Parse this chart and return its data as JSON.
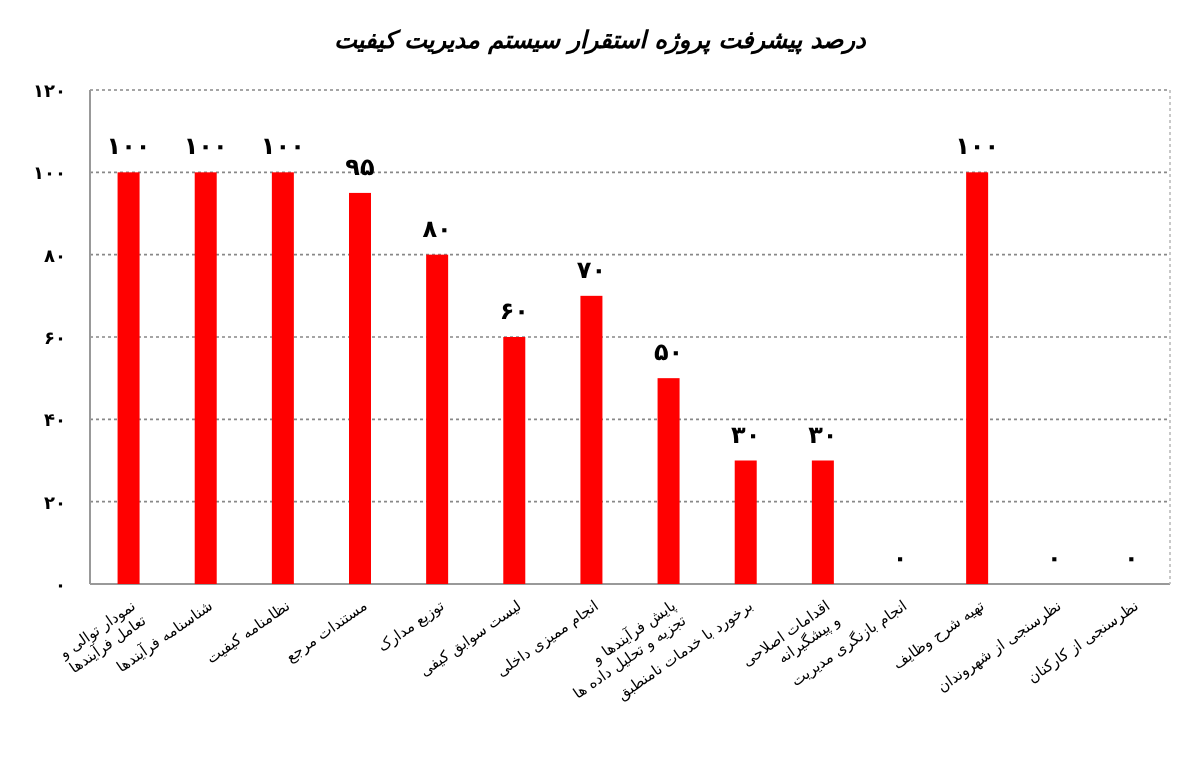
{
  "chart_data": {
    "type": "bar",
    "title": "درصد پیشرفت پروژه استقرار سیستم مدیریت کیفیت",
    "categories": [
      "نمودار توالی و تعامل فرآیندها",
      "شناسنامه فرآیندها",
      "نظامنامه کیفیت",
      "مستندات مرجع",
      "توزیع مدارک",
      "لیست سوابق کیفی",
      "انجام ممیزی داخلی",
      "پایش فرآیندها و تجزیه و تحلیل داده ها",
      "برخورد با خدمات نامنطبق",
      "اقدامات اصلاحی و پیشگیرانه",
      "انجام بازنگری مدیریت",
      "تهیه شرح وظایف",
      "نظرسنجی از شهروندان",
      "نظرسنجی از کارکنان"
    ],
    "values": [
      100,
      100,
      100,
      95,
      80,
      60,
      70,
      50,
      30,
      30,
      0,
      100,
      0,
      0
    ],
    "value_labels": [
      "۱۰۰",
      "۱۰۰",
      "۱۰۰",
      "۹۵",
      "۸۰",
      "۶۰",
      "۷۰",
      "۵۰",
      "۳۰",
      "۳۰",
      "۰",
      "۱۰۰",
      "۰",
      "۰"
    ],
    "color": "#ff0000",
    "ylim": [
      0,
      120
    ],
    "yticks": [
      {
        "value": 0,
        "label": "۰"
      },
      {
        "value": 20,
        "label": "۲۰"
      },
      {
        "value": 40,
        "label": "۴۰"
      },
      {
        "value": 60,
        "label": "۶۰"
      },
      {
        "value": 80,
        "label": "۸۰"
      },
      {
        "value": 100,
        "label": "۱۰۰"
      },
      {
        "value": 120,
        "label": "۱۲۰"
      }
    ],
    "grid": "y"
  }
}
